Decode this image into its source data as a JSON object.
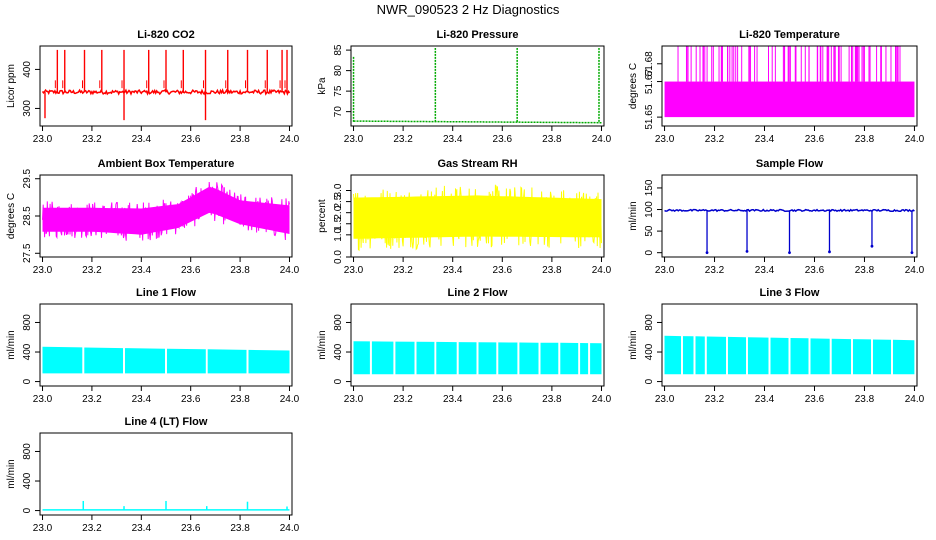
{
  "figure": {
    "title": "NWR_090523  2 Hz Diagnostics"
  },
  "chart_data": [
    {
      "type": "line",
      "title": "Li-820 CO2",
      "ylabel": "Licor ppm",
      "color": "#ff0000",
      "xlim": [
        23.0,
        24.0
      ],
      "ylim": [
        255,
        460
      ],
      "xticks": [
        "23.0",
        "23.2",
        "23.4",
        "23.6",
        "23.8",
        "24.0"
      ],
      "yticks": [
        {
          "value": 300,
          "label": "300"
        },
        {
          "value": 400,
          "label": "400"
        }
      ],
      "style": "co2",
      "baseline": 342,
      "spike_top": 450,
      "spikes": [
        23.06,
        23.09,
        23.17,
        23.24,
        23.33,
        23.43,
        23.5,
        23.57,
        23.66,
        23.75,
        23.83,
        23.91,
        23.97,
        23.99
      ],
      "dips": [
        {
          "x": 23.01,
          "y": 275
        },
        {
          "x": 23.33,
          "y": 270
        },
        {
          "x": 23.66,
          "y": 270
        }
      ]
    },
    {
      "type": "line",
      "title": "Li-820 Pressure",
      "ylabel": "kPa",
      "color": "#00aa00",
      "xlim": [
        23.0,
        24.0
      ],
      "ylim": [
        66.5,
        86
      ],
      "xticks": [
        "23.0",
        "23.2",
        "23.4",
        "23.6",
        "23.8",
        "24.0"
      ],
      "yticks": [
        {
          "value": 70,
          "label": "70"
        },
        {
          "value": 75,
          "label": "75"
        },
        {
          "value": 80,
          "label": "80"
        },
        {
          "value": 85,
          "label": "85"
        }
      ],
      "style": "pressure",
      "baseline_start": 67.7,
      "baseline_end": 67.3,
      "spikes": [
        {
          "x": 23.0,
          "y": 83.5
        },
        {
          "x": 23.33,
          "y": 85.5
        },
        {
          "x": 23.66,
          "y": 85.5
        },
        {
          "x": 23.99,
          "y": 85.5
        }
      ]
    },
    {
      "type": "line",
      "title": "Li-820 Temperature",
      "ylabel": "degrees C",
      "color": "#ff00ff",
      "xlim": [
        23.0,
        24.0
      ],
      "ylim": [
        51.645,
        51.69
      ],
      "xticks": [
        "23.0",
        "23.2",
        "23.4",
        "23.6",
        "23.8",
        "24.0"
      ],
      "yticks": [
        {
          "value": 51.65,
          "label": "51.65"
        },
        {
          "value": 51.67,
          "label": "51.67"
        },
        {
          "value": 51.68,
          "label": "51.68"
        }
      ],
      "style": "quantized",
      "levels": [
        51.65,
        51.67,
        51.69
      ]
    },
    {
      "type": "line",
      "title": "Ambient Box Temperature",
      "ylabel": "degrees C",
      "color": "#ff00ff",
      "xlim": [
        23.0,
        24.0
      ],
      "ylim": [
        27.4,
        29.6
      ],
      "xticks": [
        "23.0",
        "23.2",
        "23.4",
        "23.6",
        "23.8",
        "24.0"
      ],
      "yticks": [
        {
          "value": 27.5,
          "label": "27.5"
        },
        {
          "value": 28.5,
          "label": "28.5"
        },
        {
          "value": 29.5,
          "label": "29.5"
        }
      ],
      "style": "band",
      "envelope": [
        {
          "x": 23.0,
          "low": 27.9,
          "high": 28.9
        },
        {
          "x": 23.2,
          "low": 27.9,
          "high": 28.9
        },
        {
          "x": 23.4,
          "low": 27.8,
          "high": 28.9
        },
        {
          "x": 23.55,
          "low": 28.0,
          "high": 29.0
        },
        {
          "x": 23.68,
          "low": 28.4,
          "high": 29.5
        },
        {
          "x": 23.8,
          "low": 28.1,
          "high": 29.1
        },
        {
          "x": 24.0,
          "low": 27.8,
          "high": 29.0
        }
      ]
    },
    {
      "type": "line",
      "title": "Gas Stream RH",
      "ylabel": "percent",
      "color": "#ffff00",
      "xlim": [
        23.0,
        24.0
      ],
      "ylim": [
        0,
        3.7
      ],
      "xticks": [
        "23.0",
        "23.2",
        "23.4",
        "23.6",
        "23.8",
        "24.0"
      ],
      "yticks": [
        {
          "value": 0.0,
          "label": "0.0"
        },
        {
          "value": 1.0,
          "label": "1.0"
        },
        {
          "value": 1.5,
          "label": "1.5"
        },
        {
          "value": 2.0,
          "label": "2.0"
        },
        {
          "value": 2.5,
          "label": "2.5"
        },
        {
          "value": 3.0,
          "label": "3.0"
        }
      ],
      "style": "band",
      "envelope": [
        {
          "x": 23.0,
          "low": 0.3,
          "high": 3.2
        },
        {
          "x": 23.5,
          "low": 0.4,
          "high": 3.3
        },
        {
          "x": 24.0,
          "low": 0.4,
          "high": 3.1
        }
      ]
    },
    {
      "type": "line",
      "title": "Sample Flow",
      "ylabel": "ml/min",
      "color": "#0000cc",
      "xlim": [
        23.0,
        24.0
      ],
      "ylim": [
        -10,
        180
      ],
      "xticks": [
        "23.0",
        "23.2",
        "23.4",
        "23.6",
        "23.8",
        "24.0"
      ],
      "yticks": [
        {
          "value": 0,
          "label": "0"
        },
        {
          "value": 50,
          "label": "50"
        },
        {
          "value": 100,
          "label": "100"
        },
        {
          "value": 150,
          "label": "150"
        }
      ],
      "style": "flowdips",
      "baseline": 98,
      "dips": [
        {
          "x": 23.17,
          "y": 0
        },
        {
          "x": 23.33,
          "y": 3
        },
        {
          "x": 23.5,
          "y": 0
        },
        {
          "x": 23.66,
          "y": 2
        },
        {
          "x": 23.83,
          "y": 15
        },
        {
          "x": 23.99,
          "y": 0
        }
      ]
    },
    {
      "type": "line",
      "title": "Line 1 Flow",
      "ylabel": "ml/min",
      "color": "#00ffff",
      "xlim": [
        23.0,
        24.0
      ],
      "ylim": [
        -60,
        1050
      ],
      "xticks": [
        "23.0",
        "23.2",
        "23.4",
        "23.6",
        "23.8",
        "24.0"
      ],
      "yticks": [
        {
          "value": 0,
          "label": "0"
        },
        {
          "value": 400,
          "label": "400"
        },
        {
          "value": 800,
          "label": "800"
        }
      ],
      "style": "bandgaps",
      "low": 110,
      "high_start": 470,
      "high_end": 420,
      "gaps": [
        23.165,
        23.33,
        23.5,
        23.665,
        23.83
      ]
    },
    {
      "type": "line",
      "title": "Line 2 Flow",
      "ylabel": "ml/min",
      "color": "#00ffff",
      "xlim": [
        23.0,
        24.0
      ],
      "ylim": [
        -60,
        1050
      ],
      "xticks": [
        "23.0",
        "23.2",
        "23.4",
        "23.6",
        "23.8",
        "24.0"
      ],
      "yticks": [
        {
          "value": 0,
          "label": "0"
        },
        {
          "value": 400,
          "label": "400"
        },
        {
          "value": 800,
          "label": "800"
        }
      ],
      "style": "bandgaps",
      "low": 100,
      "high_start": 545,
      "high_end": 520,
      "gaps": [
        23.07,
        23.165,
        23.25,
        23.33,
        23.42,
        23.5,
        23.58,
        23.665,
        23.75,
        23.83,
        23.91,
        23.95
      ]
    },
    {
      "type": "line",
      "title": "Line 3 Flow",
      "ylabel": "ml/min",
      "color": "#00ffff",
      "xlim": [
        23.0,
        24.0
      ],
      "ylim": [
        -60,
        1050
      ],
      "xticks": [
        "23.0",
        "23.2",
        "23.4",
        "23.6",
        "23.8",
        "24.0"
      ],
      "yticks": [
        {
          "value": 0,
          "label": "0"
        },
        {
          "value": 400,
          "label": "400"
        },
        {
          "value": 800,
          "label": "800"
        }
      ],
      "style": "bandgaps",
      "low": 100,
      "high_start": 620,
      "high_end": 560,
      "gaps": [
        23.07,
        23.12,
        23.165,
        23.25,
        23.33,
        23.42,
        23.5,
        23.58,
        23.665,
        23.75,
        23.83,
        23.91
      ]
    },
    {
      "type": "line",
      "title": "Line 4 (LT) Flow",
      "ylabel": "ml/min",
      "color": "#00ffff",
      "xlim": [
        23.0,
        24.0
      ],
      "ylim": [
        -60,
        1050
      ],
      "xticks": [
        "23.0",
        "23.2",
        "23.4",
        "23.6",
        "23.8",
        "24.0"
      ],
      "yticks": [
        {
          "value": 0,
          "label": "0"
        },
        {
          "value": 400,
          "label": "400"
        },
        {
          "value": 800,
          "label": "800"
        }
      ],
      "style": "flatspikes",
      "baseline": 10,
      "spikes": [
        {
          "x": 23.165,
          "y": 130
        },
        {
          "x": 23.33,
          "y": 60
        },
        {
          "x": 23.5,
          "y": 130
        },
        {
          "x": 23.665,
          "y": 60
        },
        {
          "x": 23.83,
          "y": 120
        },
        {
          "x": 23.99,
          "y": 55
        }
      ]
    }
  ]
}
